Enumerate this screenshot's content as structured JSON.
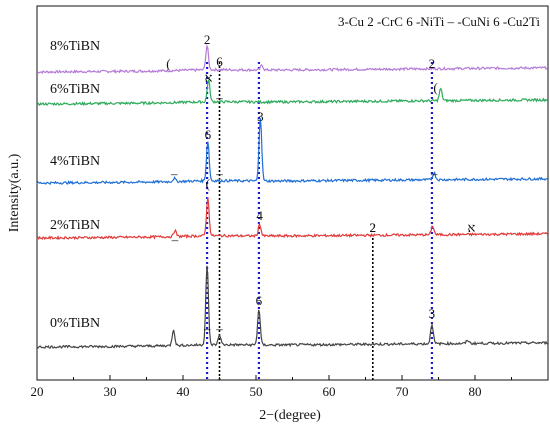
{
  "chart_data": {
    "type": "line",
    "title": "",
    "xlabel": "2−(degree)",
    "ylabel": "Intensity(a.u.)",
    "xlim": [
      20,
      90
    ],
    "x_ticks": [
      "20",
      "30",
      "40",
      "50",
      "60",
      "70",
      "80"
    ],
    "grid": false,
    "legend": {
      "placement": "top-right",
      "text": "3-Cu 2 -CrC 6 -NiTi – -CuNi 6 -Cu2Ti"
    },
    "reference_lines": [
      {
        "x": 43.3,
        "color": "#1a1ad6",
        "style": "dotted"
      },
      {
        "x": 45.0,
        "color": "#000000",
        "style": "dotted"
      },
      {
        "x": 50.4,
        "color": "#1a1ad6",
        "style": "dotted"
      },
      {
        "x": 66.0,
        "color": "#000000",
        "style": "dotted"
      },
      {
        "x": 74.1,
        "color": "#1a1ad6",
        "style": "dotted"
      }
    ],
    "series": [
      {
        "name": "8%TiBN",
        "color": "#b57bd8",
        "peaks": [
          {
            "x": 43.3,
            "height": 0.6
          },
          {
            "x": 50.8,
            "height": 0.12
          }
        ],
        "markers": [
          {
            "x": 38.0,
            "label": "("
          },
          {
            "x": 43.3,
            "label": "2"
          },
          {
            "x": 45.0,
            "label": "6"
          },
          {
            "x": 74.1,
            "label": "2"
          }
        ]
      },
      {
        "name": "6%TiBN",
        "color": "#2eaa5c",
        "peaks": [
          {
            "x": 43.5,
            "height": 0.55
          },
          {
            "x": 75.3,
            "height": 0.3
          }
        ],
        "markers": [
          {
            "x": 43.5,
            "label": "א"
          },
          {
            "x": 45.0,
            "label": "–"
          },
          {
            "x": 74.6,
            "label": "("
          }
        ]
      },
      {
        "name": "4%TiBN",
        "color": "#1f6fd6",
        "peaks": [
          {
            "x": 38.8,
            "height": 0.08
          },
          {
            "x": 43.4,
            "height": 1.0
          },
          {
            "x": 50.6,
            "height": 1.6
          },
          {
            "x": 74.4,
            "height": 0.18
          }
        ],
        "markers": [
          {
            "x": 38.8,
            "label": "–"
          },
          {
            "x": 43.4,
            "label": "6"
          },
          {
            "x": 45.0,
            "label": "–"
          },
          {
            "x": 50.6,
            "label": "3"
          },
          {
            "x": 74.4,
            "label": "–"
          }
        ]
      },
      {
        "name": "2%TiBN",
        "color": "#e23a3a",
        "peaks": [
          {
            "x": 38.9,
            "height": 0.15
          },
          {
            "x": 43.4,
            "height": 0.95
          },
          {
            "x": 50.5,
            "height": 0.3
          },
          {
            "x": 74.2,
            "height": 0.22
          }
        ],
        "markers": [
          {
            "x": 38.9,
            "label": "–"
          },
          {
            "x": 43.4,
            "label": "("
          },
          {
            "x": 50.5,
            "label": "4"
          },
          {
            "x": 66.0,
            "label": "2"
          },
          {
            "x": 79.5,
            "label": "א"
          }
        ]
      },
      {
        "name": "0%TiBN",
        "color": "#444444",
        "peaks": [
          {
            "x": 38.7,
            "height": 0.4
          },
          {
            "x": 43.3,
            "height": 2.0
          },
          {
            "x": 45.0,
            "height": 0.25
          },
          {
            "x": 50.4,
            "height": 0.9
          },
          {
            "x": 74.1,
            "height": 0.5
          },
          {
            "x": 79.0,
            "height": 0.08
          }
        ],
        "markers": [
          {
            "x": 43.3,
            "label": "–"
          },
          {
            "x": 45.0,
            "label": "–"
          },
          {
            "x": 50.4,
            "label": "6"
          },
          {
            "x": 66.0,
            "label": "2"
          },
          {
            "x": 74.1,
            "label": "3"
          }
        ]
      }
    ]
  }
}
